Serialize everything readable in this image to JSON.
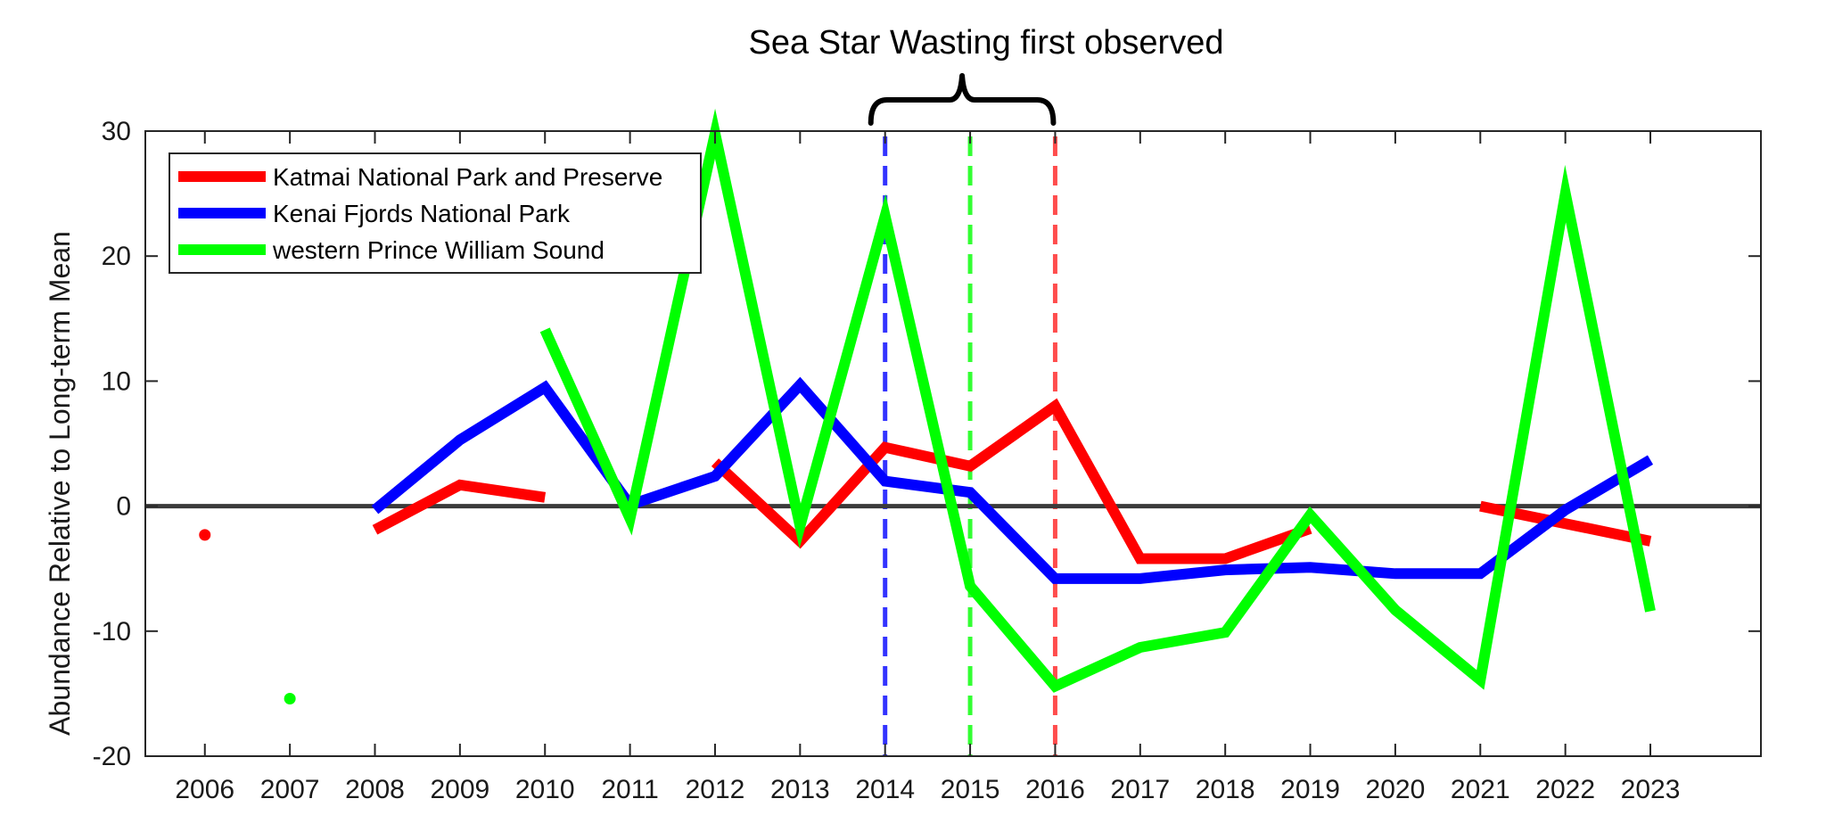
{
  "chart_data": {
    "type": "line",
    "annotation": "Sea Star Wasting first observed",
    "ylabel": "Abundance Relative to Long-term Mean",
    "xlabel": "",
    "categories": [
      "2006",
      "2007",
      "2008",
      "2009",
      "2010",
      "2011",
      "2012",
      "2013",
      "2014",
      "2015",
      "2016",
      "2017",
      "2018",
      "2019",
      "2020",
      "2021",
      "2022",
      "2023"
    ],
    "ylim": [
      -20,
      30
    ],
    "xlim": [
      2005.3,
      2024.3
    ],
    "yticks": [
      "-20",
      "-10",
      "0",
      "10",
      "20",
      "30"
    ],
    "grid": false,
    "legend_position": "top-left",
    "zero_line": 0,
    "bracket_years": [
      2014,
      2016
    ],
    "series": [
      {
        "name": "Katmai National Park and Preserve",
        "color": "#ff0000",
        "values": [
          -2.3,
          null,
          -1.9,
          1.7,
          0.7,
          null,
          3.5,
          -2.8,
          4.7,
          3.2,
          8.0,
          -4.2,
          -4.2,
          -1.8,
          null,
          0.0,
          -1.4,
          -2.8
        ],
        "marker_line_year": 2016,
        "marker_line_color": "#ff4d4d"
      },
      {
        "name": "Kenai Fjords National Park",
        "color": "#0000ff",
        "values": [
          null,
          null,
          -0.3,
          5.3,
          9.5,
          0.1,
          2.4,
          9.7,
          2.0,
          1.1,
          -5.8,
          -5.8,
          -5.1,
          -4.9,
          -5.4,
          -5.4,
          -0.3,
          3.7
        ],
        "marker_line_year": 2014,
        "marker_line_color": "#3333ff"
      },
      {
        "name": "western Prince William Sound",
        "color": "#00ff00",
        "values": [
          null,
          -15.4,
          null,
          null,
          14.1,
          -1.0,
          29.8,
          -1.6,
          23.2,
          -6.4,
          -14.4,
          -11.3,
          -10.1,
          -0.7,
          -8.3,
          -13.9,
          25.0,
          -8.4
        ],
        "marker_line_year": 2015,
        "marker_line_color": "#33ff33"
      }
    ]
  }
}
